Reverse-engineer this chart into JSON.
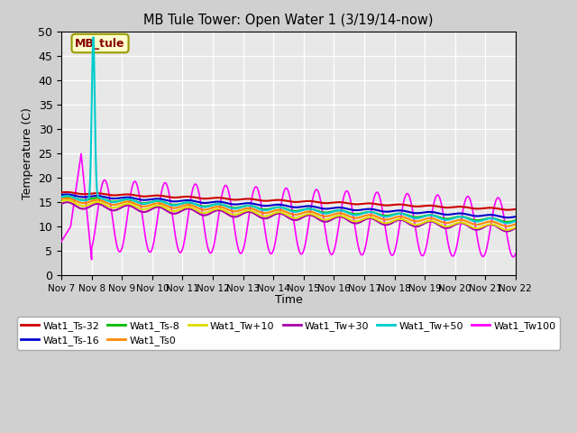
{
  "title": "MB Tule Tower: Open Water 1 (3/19/14-now)",
  "xlabel": "Time",
  "ylabel": "Temperature (C)",
  "ylim": [
    0,
    50
  ],
  "yticks": [
    0,
    5,
    10,
    15,
    20,
    25,
    30,
    35,
    40,
    45,
    50
  ],
  "xtick_labels": [
    "Nov 7",
    "Nov 8",
    "Nov 9",
    "Nov 10",
    "Nov 11",
    "Nov 12",
    "Nov 13",
    "Nov 14",
    "Nov 15",
    "Nov 16",
    "Nov 17",
    "Nov 18",
    "Nov 19",
    "Nov 20",
    "Nov 21",
    "Nov 22"
  ],
  "fig_bg_color": "#d0d0d0",
  "plot_bg_color": "#e8e8e8",
  "series": {
    "Wat1_Ts-32": {
      "color": "#cc0000",
      "lw": 1.5
    },
    "Wat1_Ts-16": {
      "color": "#0000cc",
      "lw": 1.5
    },
    "Wat1_Ts-8": {
      "color": "#00bb00",
      "lw": 1.5
    },
    "Wat1_Ts0": {
      "color": "#ff8800",
      "lw": 1.5
    },
    "Wat1_Tw+10": {
      "color": "#dddd00",
      "lw": 1.5
    },
    "Wat1_Tw+30": {
      "color": "#aa00aa",
      "lw": 1.5
    },
    "Wat1_Tw+50": {
      "color": "#00cccc",
      "lw": 1.5
    },
    "Wat1_Tw100": {
      "color": "#ff00ff",
      "lw": 1.2
    }
  },
  "annotation": {
    "text": "MB_tule",
    "facecolor": "#ffffcc",
    "edgecolor": "#999900",
    "textcolor": "#880000"
  }
}
